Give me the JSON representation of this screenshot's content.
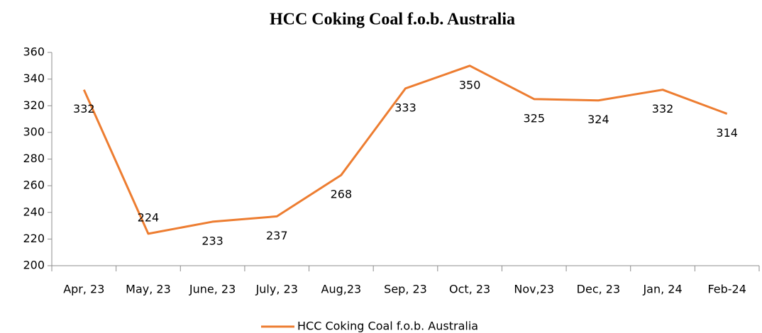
{
  "chart_data": {
    "type": "line",
    "title": "HCC Coking Coal f.o.b. Australia",
    "categories": [
      "Apr, 23",
      "May, 23",
      "June, 23",
      "July, 23",
      "Aug,23",
      "Sep, 23",
      "Oct, 23",
      "Nov,23",
      "Dec, 23",
      "Jan, 24",
      "Feb-24"
    ],
    "series": [
      {
        "name": "HCC Coking Coal f.o.b. Australia",
        "color": "#ed7d31",
        "values": [
          332,
          224,
          233,
          237,
          268,
          333,
          350,
          325,
          324,
          332,
          314
        ]
      }
    ],
    "ylim": [
      200,
      360
    ],
    "yticks": [
      200,
      220,
      240,
      260,
      280,
      300,
      320,
      340,
      360
    ],
    "grid": false,
    "legend": "bottom",
    "data_labels": true
  }
}
